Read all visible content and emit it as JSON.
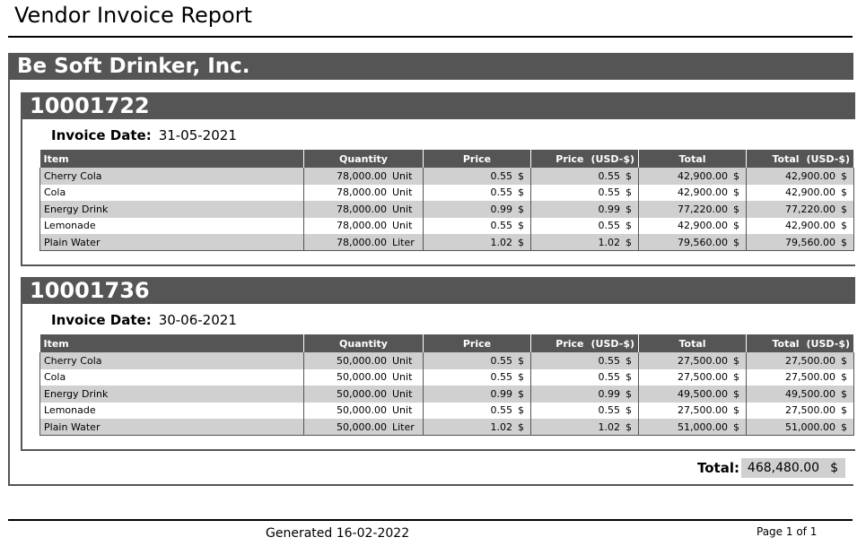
{
  "report": {
    "title": "Vendor Invoice Report"
  },
  "vendor": {
    "name": "Be Soft Drinker, Inc."
  },
  "columns": {
    "item": "Item",
    "quantity": "Quantity",
    "price": "Price",
    "price_usd_left": "Price",
    "price_usd_right": "(USD-$)",
    "total": "Total",
    "total_usd_left": "Total",
    "total_usd_right": "(USD-$)"
  },
  "invoice_date_label": "Invoice Date:",
  "invoices": [
    {
      "number": "10001722",
      "date": "31-05-2021",
      "rows": [
        {
          "item": "Cherry Cola",
          "qty": "78,000.00",
          "qty_unit": "Unit",
          "price": "0.55",
          "price_cur": "$",
          "price_usd": "0.55",
          "price_usd_cur": "$",
          "total": "42,900.00",
          "total_cur": "$",
          "total_usd": "42,900.00",
          "total_usd_cur": "$"
        },
        {
          "item": "Cola",
          "qty": "78,000.00",
          "qty_unit": "Unit",
          "price": "0.55",
          "price_cur": "$",
          "price_usd": "0.55",
          "price_usd_cur": "$",
          "total": "42,900.00",
          "total_cur": "$",
          "total_usd": "42,900.00",
          "total_usd_cur": "$"
        },
        {
          "item": "Energy Drink",
          "qty": "78,000.00",
          "qty_unit": "Unit",
          "price": "0.99",
          "price_cur": "$",
          "price_usd": "0.99",
          "price_usd_cur": "$",
          "total": "77,220.00",
          "total_cur": "$",
          "total_usd": "77,220.00",
          "total_usd_cur": "$"
        },
        {
          "item": "Lemonade",
          "qty": "78,000.00",
          "qty_unit": "Unit",
          "price": "0.55",
          "price_cur": "$",
          "price_usd": "0.55",
          "price_usd_cur": "$",
          "total": "42,900.00",
          "total_cur": "$",
          "total_usd": "42,900.00",
          "total_usd_cur": "$"
        },
        {
          "item": "Plain Water",
          "qty": "78,000.00",
          "qty_unit": "Liter",
          "price": "1.02",
          "price_cur": "$",
          "price_usd": "1.02",
          "price_usd_cur": "$",
          "total": "79,560.00",
          "total_cur": "$",
          "total_usd": "79,560.00",
          "total_usd_cur": "$"
        }
      ]
    },
    {
      "number": "10001736",
      "date": "30-06-2021",
      "rows": [
        {
          "item": "Cherry Cola",
          "qty": "50,000.00",
          "qty_unit": "Unit",
          "price": "0.55",
          "price_cur": "$",
          "price_usd": "0.55",
          "price_usd_cur": "$",
          "total": "27,500.00",
          "total_cur": "$",
          "total_usd": "27,500.00",
          "total_usd_cur": "$"
        },
        {
          "item": "Cola",
          "qty": "50,000.00",
          "qty_unit": "Unit",
          "price": "0.55",
          "price_cur": "$",
          "price_usd": "0.55",
          "price_usd_cur": "$",
          "total": "27,500.00",
          "total_cur": "$",
          "total_usd": "27,500.00",
          "total_usd_cur": "$"
        },
        {
          "item": "Energy Drink",
          "qty": "50,000.00",
          "qty_unit": "Unit",
          "price": "0.99",
          "price_cur": "$",
          "price_usd": "0.99",
          "price_usd_cur": "$",
          "total": "49,500.00",
          "total_cur": "$",
          "total_usd": "49,500.00",
          "total_usd_cur": "$"
        },
        {
          "item": "Lemonade",
          "qty": "50,000.00",
          "qty_unit": "Unit",
          "price": "0.55",
          "price_cur": "$",
          "price_usd": "0.55",
          "price_usd_cur": "$",
          "total": "27,500.00",
          "total_cur": "$",
          "total_usd": "27,500.00",
          "total_usd_cur": "$"
        },
        {
          "item": "Plain Water",
          "qty": "50,000.00",
          "qty_unit": "Liter",
          "price": "1.02",
          "price_cur": "$",
          "price_usd": "1.02",
          "price_usd_cur": "$",
          "total": "51,000.00",
          "total_cur": "$",
          "total_usd": "51,000.00",
          "total_usd_cur": "$"
        }
      ]
    }
  ],
  "grand_total": {
    "label": "Total:",
    "value": "468,480.00",
    "currency": "$"
  },
  "footer": {
    "generated_label": "Generated",
    "generated_date": "16-02-2022",
    "page": "Page 1 of 1"
  },
  "colors": {
    "header_bg": "#555555",
    "row_alt": "#d0d0d0"
  }
}
